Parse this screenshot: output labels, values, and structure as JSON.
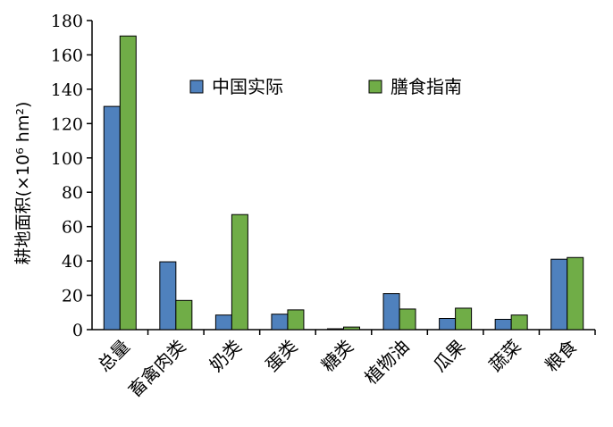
{
  "chart_data": {
    "type": "bar",
    "categories": [
      "总量",
      "畜禽肉类",
      "奶类",
      "蛋类",
      "糖类",
      "植物油",
      "瓜果",
      "蔬菜",
      "粮食"
    ],
    "series": [
      {
        "name": "中国实际",
        "color": "#4f81bd",
        "values": [
          130,
          39.5,
          8.5,
          9,
          0.5,
          21,
          6.5,
          6,
          41
        ]
      },
      {
        "name": "膳食指南",
        "color": "#70ad47",
        "values": [
          171,
          17,
          67,
          11.5,
          1.5,
          12,
          12.5,
          8.5,
          42
        ]
      }
    ],
    "ylabel": "耕地面积(×10⁶ hm²)",
    "ylim": [
      0,
      180
    ],
    "yticks": [
      0,
      20,
      40,
      60,
      80,
      100,
      120,
      140,
      160,
      180
    ],
    "legend": "top-center",
    "grid": false
  }
}
